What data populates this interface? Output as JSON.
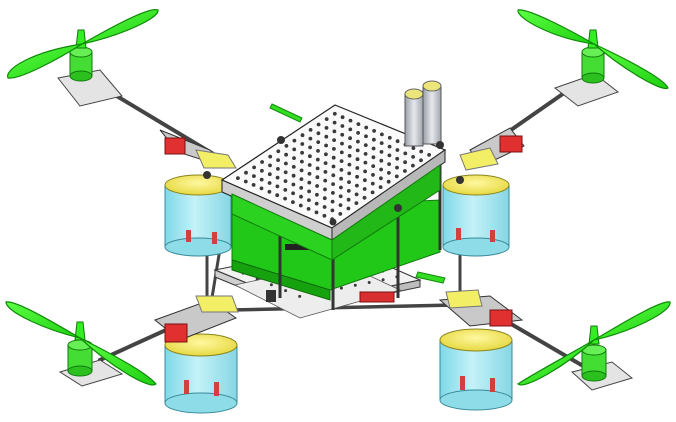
{
  "model": {
    "view": "isometric",
    "rotor_count": 4,
    "colors": {
      "propeller": "#33ee22",
      "propeller_edge": "#119900",
      "motor": "#44dd33",
      "frame_tube": "#555555",
      "plate": "#f4f4f4",
      "plate_hole": "#3a3a3a",
      "pcb": "#22cc11",
      "bracket_yellow": "#f2ee66",
      "mount_red": "#e03030",
      "leg_cylinder": "#9fe6f0",
      "battery": "#c8c8c8",
      "battery_cap": "#e8e080"
    }
  }
}
